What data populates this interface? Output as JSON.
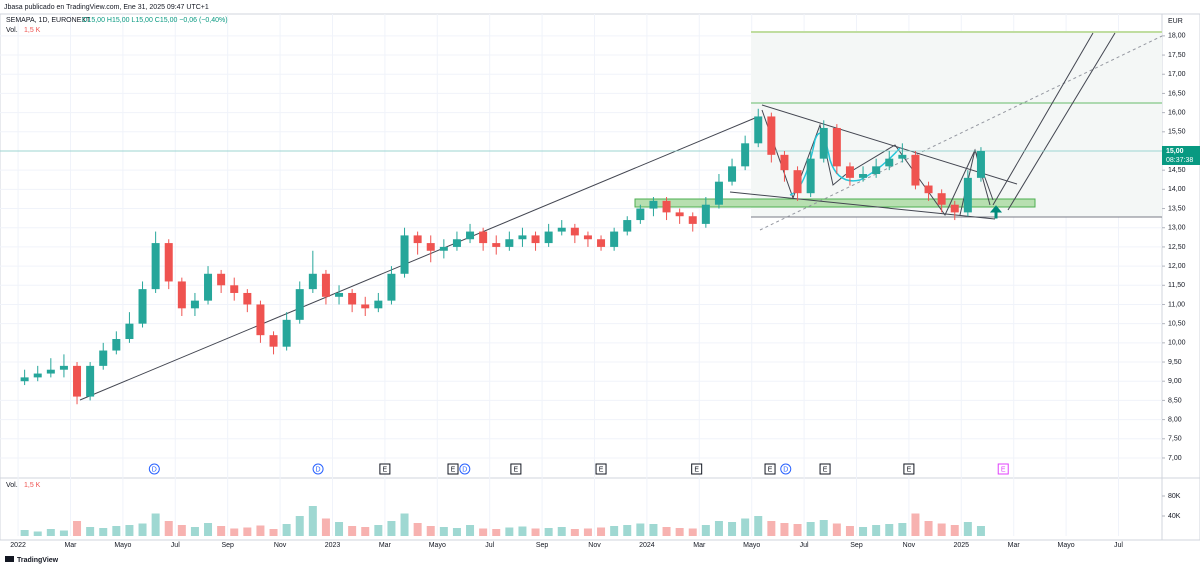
{
  "header": {
    "publisher": "Jbasa publicado en TradingView.com, Ene 31, 2025 09:47 UTC+1",
    "symbol": "SEMAPA, 1D, EURONEXT",
    "ohlc": "O15,00 H15,00 L15,00 C15,00 −0,06 (−0,40%)",
    "currency": "EUR",
    "last_price": "15,00",
    "countdown": "08:37:38",
    "brand": "TradingView"
  },
  "chart_data": [
    {
      "type": "candlestick",
      "up_color": "#26a69a",
      "down_color": "#ef5350",
      "grid": true,
      "x": [
        0.25,
        0.75,
        1.25,
        1.75,
        2.25,
        2.75,
        3.25,
        3.75,
        4.25,
        4.75,
        5.25,
        5.75,
        6.25,
        6.75,
        7.25,
        7.75,
        8.25,
        8.75,
        9.25,
        9.75,
        10.25,
        10.75,
        11.25,
        11.75,
        12.25,
        12.75,
        13.25,
        13.75,
        14.25,
        14.75,
        15.25,
        15.75,
        16.25,
        16.75,
        17.25,
        17.75,
        18.25,
        18.75,
        19.25,
        19.75,
        20.25,
        20.75,
        21.25,
        21.75,
        22.25,
        22.75,
        23.25,
        23.75,
        24.25,
        24.75,
        25.25,
        25.75,
        26.25,
        26.75,
        27.25,
        27.75,
        28.25,
        28.75,
        29.25,
        29.75,
        30.25,
        30.75,
        31.25,
        31.75,
        32.25,
        32.75,
        33.25,
        33.75,
        34.25,
        34.75,
        35.25,
        35.75,
        36.25,
        36.75
      ],
      "open": [
        9.0,
        9.1,
        9.2,
        9.3,
        9.4,
        8.6,
        9.4,
        9.8,
        10.1,
        10.5,
        11.4,
        12.6,
        11.6,
        10.9,
        11.1,
        11.8,
        11.5,
        11.3,
        11.0,
        10.2,
        9.9,
        10.6,
        11.4,
        11.8,
        11.2,
        11.3,
        11.0,
        10.9,
        11.1,
        11.8,
        12.8,
        12.6,
        12.4,
        12.5,
        12.7,
        12.9,
        12.6,
        12.5,
        12.7,
        12.8,
        12.6,
        12.9,
        13.0,
        12.8,
        12.7,
        12.5,
        12.9,
        13.2,
        13.5,
        13.7,
        13.4,
        13.3,
        13.1,
        13.6,
        14.2,
        14.6,
        15.2,
        15.9,
        14.9,
        14.5,
        13.9,
        14.8,
        15.6,
        14.6,
        14.3,
        14.4,
        14.6,
        14.8,
        14.9,
        14.1,
        13.9,
        13.6,
        13.4,
        14.3
      ],
      "high": [
        9.3,
        9.4,
        9.6,
        9.7,
        9.5,
        9.5,
        10.0,
        10.3,
        10.8,
        11.6,
        12.9,
        12.7,
        11.7,
        11.3,
        12.0,
        11.9,
        11.7,
        11.4,
        11.1,
        10.3,
        10.8,
        11.6,
        12.4,
        11.9,
        11.5,
        11.4,
        11.2,
        11.3,
        12.0,
        13.0,
        12.9,
        12.8,
        12.7,
        12.9,
        13.1,
        13.0,
        12.8,
        12.9,
        13.0,
        12.9,
        13.1,
        13.2,
        13.1,
        12.9,
        12.8,
        13.0,
        13.3,
        13.6,
        13.8,
        13.8,
        13.5,
        13.4,
        13.8,
        14.4,
        14.8,
        15.4,
        16.1,
        16.0,
        15.0,
        14.6,
        15.0,
        15.8,
        15.7,
        14.7,
        14.6,
        14.8,
        15.0,
        15.2,
        15.0,
        14.2,
        14.0,
        13.7,
        14.5,
        15.1
      ],
      "low": [
        8.9,
        9.0,
        9.1,
        9.1,
        8.4,
        8.5,
        9.3,
        9.7,
        10.0,
        10.4,
        11.3,
        11.4,
        10.7,
        10.7,
        11.0,
        11.3,
        11.1,
        10.8,
        10.0,
        9.7,
        9.8,
        10.5,
        11.3,
        11.0,
        11.0,
        10.8,
        10.7,
        10.8,
        11.0,
        11.7,
        12.3,
        12.1,
        12.2,
        12.4,
        12.6,
        12.4,
        12.3,
        12.4,
        12.5,
        12.4,
        12.5,
        12.8,
        12.6,
        12.5,
        12.4,
        12.4,
        12.8,
        13.1,
        13.3,
        13.2,
        13.1,
        12.9,
        13.0,
        13.5,
        14.1,
        14.5,
        15.1,
        14.7,
        14.2,
        13.7,
        13.8,
        14.7,
        14.4,
        14.1,
        14.2,
        14.3,
        14.5,
        14.7,
        14.0,
        13.7,
        13.4,
        13.2,
        13.3,
        14.2
      ],
      "close": [
        9.1,
        9.2,
        9.3,
        9.4,
        8.6,
        9.4,
        9.8,
        10.1,
        10.5,
        11.4,
        12.6,
        11.6,
        10.9,
        11.1,
        11.8,
        11.5,
        11.3,
        11.0,
        10.2,
        9.9,
        10.6,
        11.4,
        11.8,
        11.2,
        11.3,
        11.0,
        10.9,
        11.1,
        11.8,
        12.8,
        12.6,
        12.4,
        12.5,
        12.7,
        12.9,
        12.6,
        12.5,
        12.7,
        12.8,
        12.6,
        12.9,
        13.0,
        12.8,
        12.7,
        12.5,
        12.9,
        13.2,
        13.5,
        13.7,
        13.4,
        13.3,
        13.1,
        13.6,
        14.2,
        14.6,
        15.2,
        15.9,
        14.9,
        14.5,
        13.9,
        14.8,
        15.6,
        14.6,
        14.3,
        14.4,
        14.6,
        14.8,
        14.9,
        14.1,
        13.9,
        13.6,
        13.4,
        14.3,
        15.0
      ],
      "xlim": [
        -0.69,
        43.66
      ],
      "ylim": [
        6.53,
        18.57
      ],
      "xticks": [
        {
          "value": 0,
          "label": "2022"
        },
        {
          "value": 2,
          "label": "Mar"
        },
        {
          "value": 4,
          "label": "Mayo"
        },
        {
          "value": 6,
          "label": "Jul"
        },
        {
          "value": 8,
          "label": "Sep"
        },
        {
          "value": 10,
          "label": "Nov"
        },
        {
          "value": 12,
          "label": "2023"
        },
        {
          "value": 14,
          "label": "Mar"
        },
        {
          "value": 16,
          "label": "Mayo"
        },
        {
          "value": 18,
          "label": "Jul"
        },
        {
          "value": 20,
          "label": "Sep"
        },
        {
          "value": 22,
          "label": "Nov"
        },
        {
          "value": 24,
          "label": "2024"
        },
        {
          "value": 26,
          "label": "Mar"
        },
        {
          "value": 28,
          "label": "Mayo"
        },
        {
          "value": 30,
          "label": "Jul"
        },
        {
          "value": 32,
          "label": "Sep"
        },
        {
          "value": 34,
          "label": "Nov"
        },
        {
          "value": 36,
          "label": "2025"
        },
        {
          "value": 38,
          "label": "Mar"
        },
        {
          "value": 40,
          "label": "Mayo"
        },
        {
          "value": 42,
          "label": "Jul"
        }
      ],
      "yticks": [
        {
          "value": 7,
          "label": "7,00"
        },
        {
          "value": 7.5,
          "label": "7,50"
        },
        {
          "value": 8,
          "label": "8,00"
        },
        {
          "value": 8.5,
          "label": "8,50"
        },
        {
          "value": 9,
          "label": "9,00"
        },
        {
          "value": 9.5,
          "label": "9,50"
        },
        {
          "value": 10,
          "label": "10,00"
        },
        {
          "value": 10.5,
          "label": "10,50"
        },
        {
          "value": 11,
          "label": "11,00"
        },
        {
          "value": 11.5,
          "label": "11,50"
        },
        {
          "value": 12,
          "label": "12,00"
        },
        {
          "value": 12.5,
          "label": "12,50"
        },
        {
          "value": 13,
          "label": "13,00"
        },
        {
          "value": 13.5,
          "label": "13,50"
        },
        {
          "value": 14,
          "label": "14,00"
        },
        {
          "value": 14.5,
          "label": "14,50"
        },
        {
          "value": 15,
          "label": "15,00"
        },
        {
          "value": 15.5,
          "label": "15,50"
        },
        {
          "value": 16,
          "label": "16,00"
        },
        {
          "value": 16.5,
          "label": "16,50"
        },
        {
          "value": 17,
          "label": "17,00"
        },
        {
          "value": 17.5,
          "label": "17,50"
        },
        {
          "value": 18,
          "label": "18,00"
        }
      ],
      "events": [
        {
          "x": 5.2,
          "label": "D",
          "color": "#2962ff"
        },
        {
          "x": 11.45,
          "label": "D",
          "color": "#2962ff"
        },
        {
          "x": 14.0,
          "label": "E",
          "color": "#131722"
        },
        {
          "x": 16.6,
          "label": "E",
          "color": "#131722"
        },
        {
          "x": 17.05,
          "label": "D",
          "color": "#2962ff"
        },
        {
          "x": 19.0,
          "label": "E",
          "color": "#131722"
        },
        {
          "x": 22.25,
          "label": "E",
          "color": "#131722"
        },
        {
          "x": 25.9,
          "label": "E",
          "color": "#131722"
        },
        {
          "x": 28.7,
          "label": "E",
          "color": "#131722"
        },
        {
          "x": 29.3,
          "label": "D",
          "color": "#2962ff"
        },
        {
          "x": 30.8,
          "label": "E",
          "color": "#131722"
        },
        {
          "x": 34.0,
          "label": "E",
          "color": "#131722"
        },
        {
          "x": 37.6,
          "label": "E",
          "color": "#e040fb"
        }
      ]
    },
    {
      "type": "bar",
      "title": "Vol.",
      "last_label": "1,5 K",
      "up_color": "#9fd8d2",
      "down_color": "#f7b2b0",
      "values": [
        12000,
        9000,
        14000,
        11000,
        30000,
        18000,
        16000,
        20000,
        22000,
        25000,
        45000,
        30000,
        22000,
        18000,
        26000,
        20000,
        15000,
        17000,
        21000,
        14000,
        24000,
        40000,
        60000,
        35000,
        28000,
        20000,
        18000,
        22000,
        30000,
        45000,
        26000,
        20000,
        18000,
        16000,
        22000,
        15000,
        14000,
        17000,
        19000,
        15000,
        16000,
        18000,
        14000,
        15000,
        17000,
        20000,
        22000,
        25000,
        24000,
        18000,
        16000,
        15000,
        22000,
        30000,
        28000,
        35000,
        40000,
        30000,
        26000,
        24000,
        28000,
        32000,
        25000,
        20000,
        18000,
        22000,
        24000,
        26000,
        45000,
        30000,
        25000,
        22000,
        28000,
        20000
      ],
      "ylim": [
        0,
        104000
      ],
      "yticks": [
        {
          "value": 40000,
          "label": "40K"
        },
        {
          "value": 80000,
          "label": "80K"
        }
      ]
    }
  ]
}
